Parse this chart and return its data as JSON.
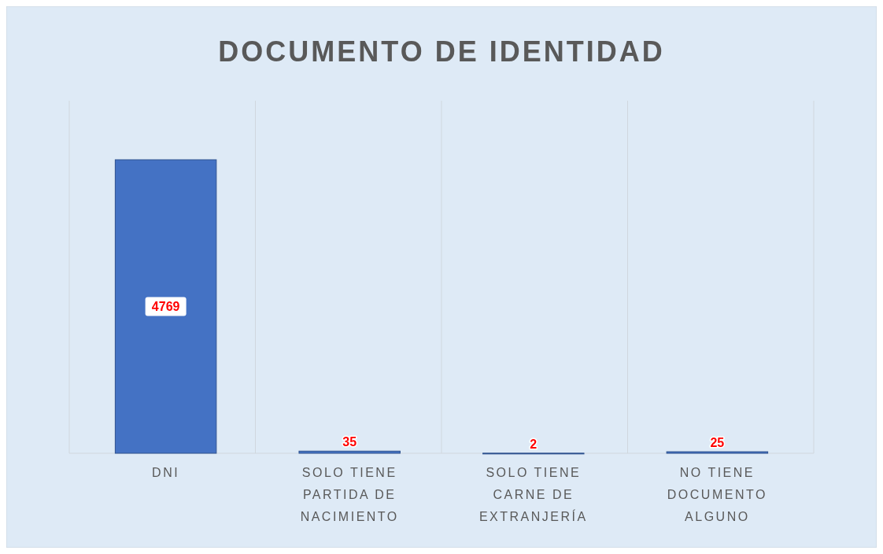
{
  "chart_data": {
    "type": "bar",
    "title": "DOCUMENTO DE IDENTIDAD",
    "categories": [
      "DNI",
      "SOLO TIENE PARTIDA DE NACIMIENTO",
      "SOLO TIENE CARNE DE EXTRANJERÍA",
      "NO TIENE DOCUMENTO ALGUNO"
    ],
    "values": [
      4769,
      35,
      2,
      25
    ],
    "color": "#4472c4",
    "data_labels": true
  }
}
